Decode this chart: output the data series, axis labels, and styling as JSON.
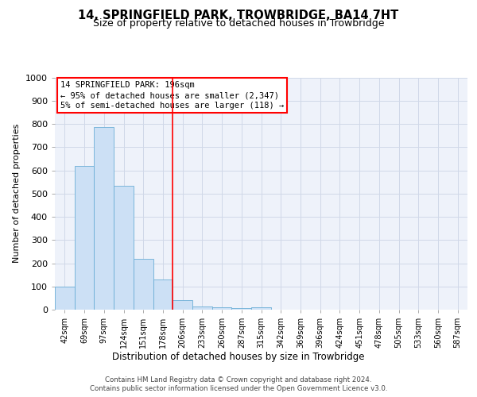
{
  "title": "14, SPRINGFIELD PARK, TROWBRIDGE, BA14 7HT",
  "subtitle": "Size of property relative to detached houses in Trowbridge",
  "xlabel": "Distribution of detached houses by size in Trowbridge",
  "ylabel": "Number of detached properties",
  "bar_labels": [
    "42sqm",
    "69sqm",
    "97sqm",
    "124sqm",
    "151sqm",
    "178sqm",
    "206sqm",
    "233sqm",
    "260sqm",
    "287sqm",
    "315sqm",
    "342sqm",
    "369sqm",
    "396sqm",
    "424sqm",
    "451sqm",
    "478sqm",
    "505sqm",
    "533sqm",
    "560sqm",
    "587sqm"
  ],
  "bar_values": [
    100,
    620,
    785,
    535,
    220,
    130,
    40,
    15,
    10,
    8,
    10,
    0,
    0,
    0,
    0,
    0,
    0,
    0,
    0,
    0,
    0
  ],
  "bar_color": "#cce0f5",
  "bar_edge_color": "#6baed6",
  "grid_color": "#d0d8e8",
  "background_color": "#eef2fa",
  "vline_x": 5.5,
  "vline_color": "red",
  "annotation_line1": "14 SPRINGFIELD PARK: 196sqm",
  "annotation_line2": "← 95% of detached houses are smaller (2,347)",
  "annotation_line3": "5% of semi-detached houses are larger (118) →",
  "ylim": [
    0,
    1000
  ],
  "yticks": [
    0,
    100,
    200,
    300,
    400,
    500,
    600,
    700,
    800,
    900,
    1000
  ],
  "footer_line1": "Contains HM Land Registry data © Crown copyright and database right 2024.",
  "footer_line2": "Contains public sector information licensed under the Open Government Licence v3.0."
}
